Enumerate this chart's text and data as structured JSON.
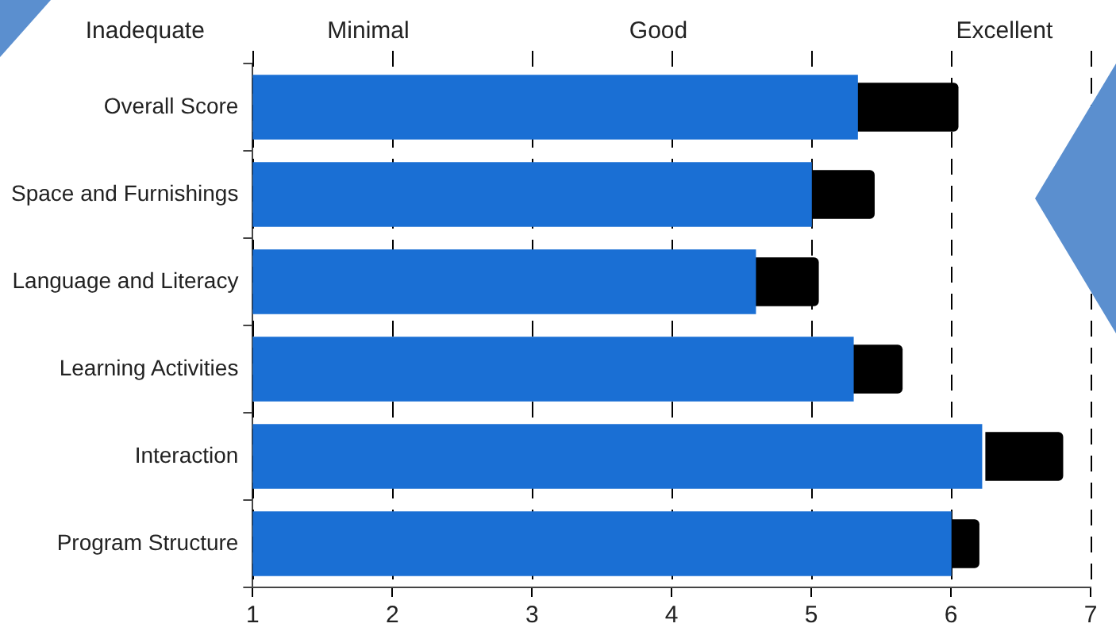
{
  "chart_data": {
    "type": "bar",
    "orientation": "horizontal",
    "categories": [
      "Overall Score",
      "Space and Furnishings",
      "Language and Literacy",
      "Learning Activities",
      "Interaction",
      "Program Structure"
    ],
    "series": [
      {
        "color": "#1a6fd4",
        "values": [
          5.33,
          5.0,
          4.6,
          5.3,
          6.22,
          6.0
        ]
      },
      {
        "color": "#000000",
        "base": [
          5.2,
          5.0,
          4.6,
          5.2,
          6.25,
          6.0
        ],
        "values": [
          0.85,
          0.45,
          0.45,
          0.45,
          0.55,
          0.2
        ]
      }
    ],
    "xlim": [
      1,
      7
    ],
    "xticks": [
      1,
      2,
      3,
      4,
      5,
      6,
      7
    ],
    "grid": "x",
    "legend": false,
    "annotations": [
      "Inadequate",
      "Minimal",
      "Good",
      "Excellent"
    ]
  }
}
